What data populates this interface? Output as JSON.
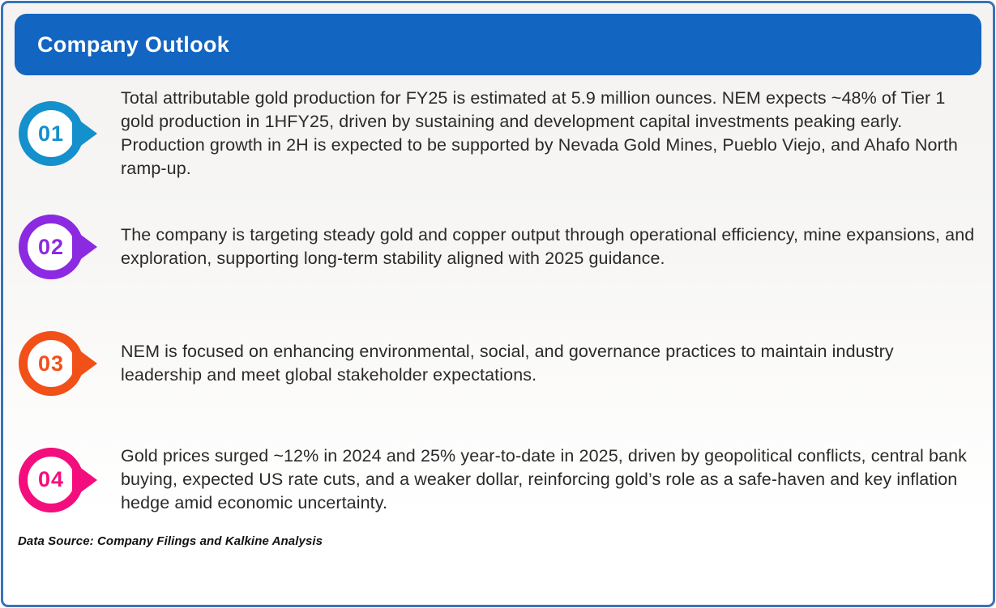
{
  "page": {
    "border_color": "#3873b9",
    "background_color": "#ffffff"
  },
  "header": {
    "title": "Company Outlook",
    "bg_color": "#1265c1",
    "text_color": "#ffffff"
  },
  "items": [
    {
      "number": "01",
      "color": "#1490cc",
      "text": "Total attributable gold production for FY25 is estimated at 5.9 million ounces. NEM expects ~48% of Tier 1 gold production in 1HFY25, driven by sustaining and development capital investments peaking early. Production growth in 2H is expected to be supported by Nevada Gold Mines, Pueblo Viejo, and Ahafo North ramp-up."
    },
    {
      "number": "02",
      "color": "#8c2ae2",
      "text": "The company is targeting steady gold and copper output through operational efficiency, mine expansions, and exploration, supporting long-term stability aligned with 2025 guidance."
    },
    {
      "number": "03",
      "color": "#f25019",
      "text": "NEM is focused on enhancing environmental, social, and governance practices to maintain industry leadership and meet global stakeholder expectations."
    },
    {
      "number": "04",
      "color": "#f40d7d",
      "text": "Gold prices surged ~12% in 2024 and 25% year-to-date in 2025, driven by geopolitical conflicts, central bank buying, expected US rate cuts, and a weaker dollar, reinforcing gold’s role as a safe-haven and key inflation hedge amid economic uncertainty."
    }
  ],
  "footer": {
    "text": "Data Source: Company Filings and Kalkine Analysis"
  }
}
